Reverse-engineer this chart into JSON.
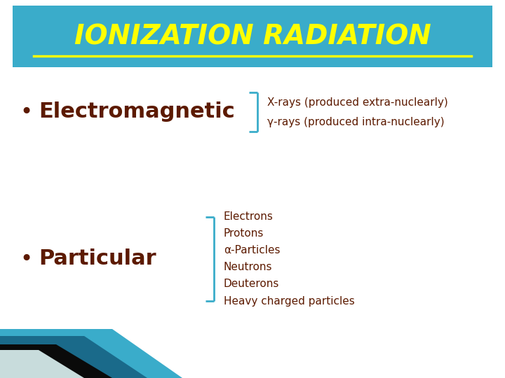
{
  "title": "IONIZATION RADIATION",
  "title_color": "#FFFF00",
  "title_bg_color": "#3AACCA",
  "bg_color": "#FFFFFF",
  "bullet_color": "#5C1A00",
  "bullet1_label": "Electromagnetic",
  "bullet2_label": "Particular",
  "em_items": [
    "X-rays (produced extra-nuclearly)",
    "γ-rays (produced intra-nuclearly)"
  ],
  "part_items": [
    "Electrons",
    "Protons",
    "α-Particles",
    "Neutrons",
    "Deuterons",
    "Heavy charged particles"
  ],
  "bracket_color": "#3AACCA",
  "item_color": "#5C1A00",
  "title_fontsize": 28,
  "bullet_fontsize": 22,
  "item_fontsize": 11
}
